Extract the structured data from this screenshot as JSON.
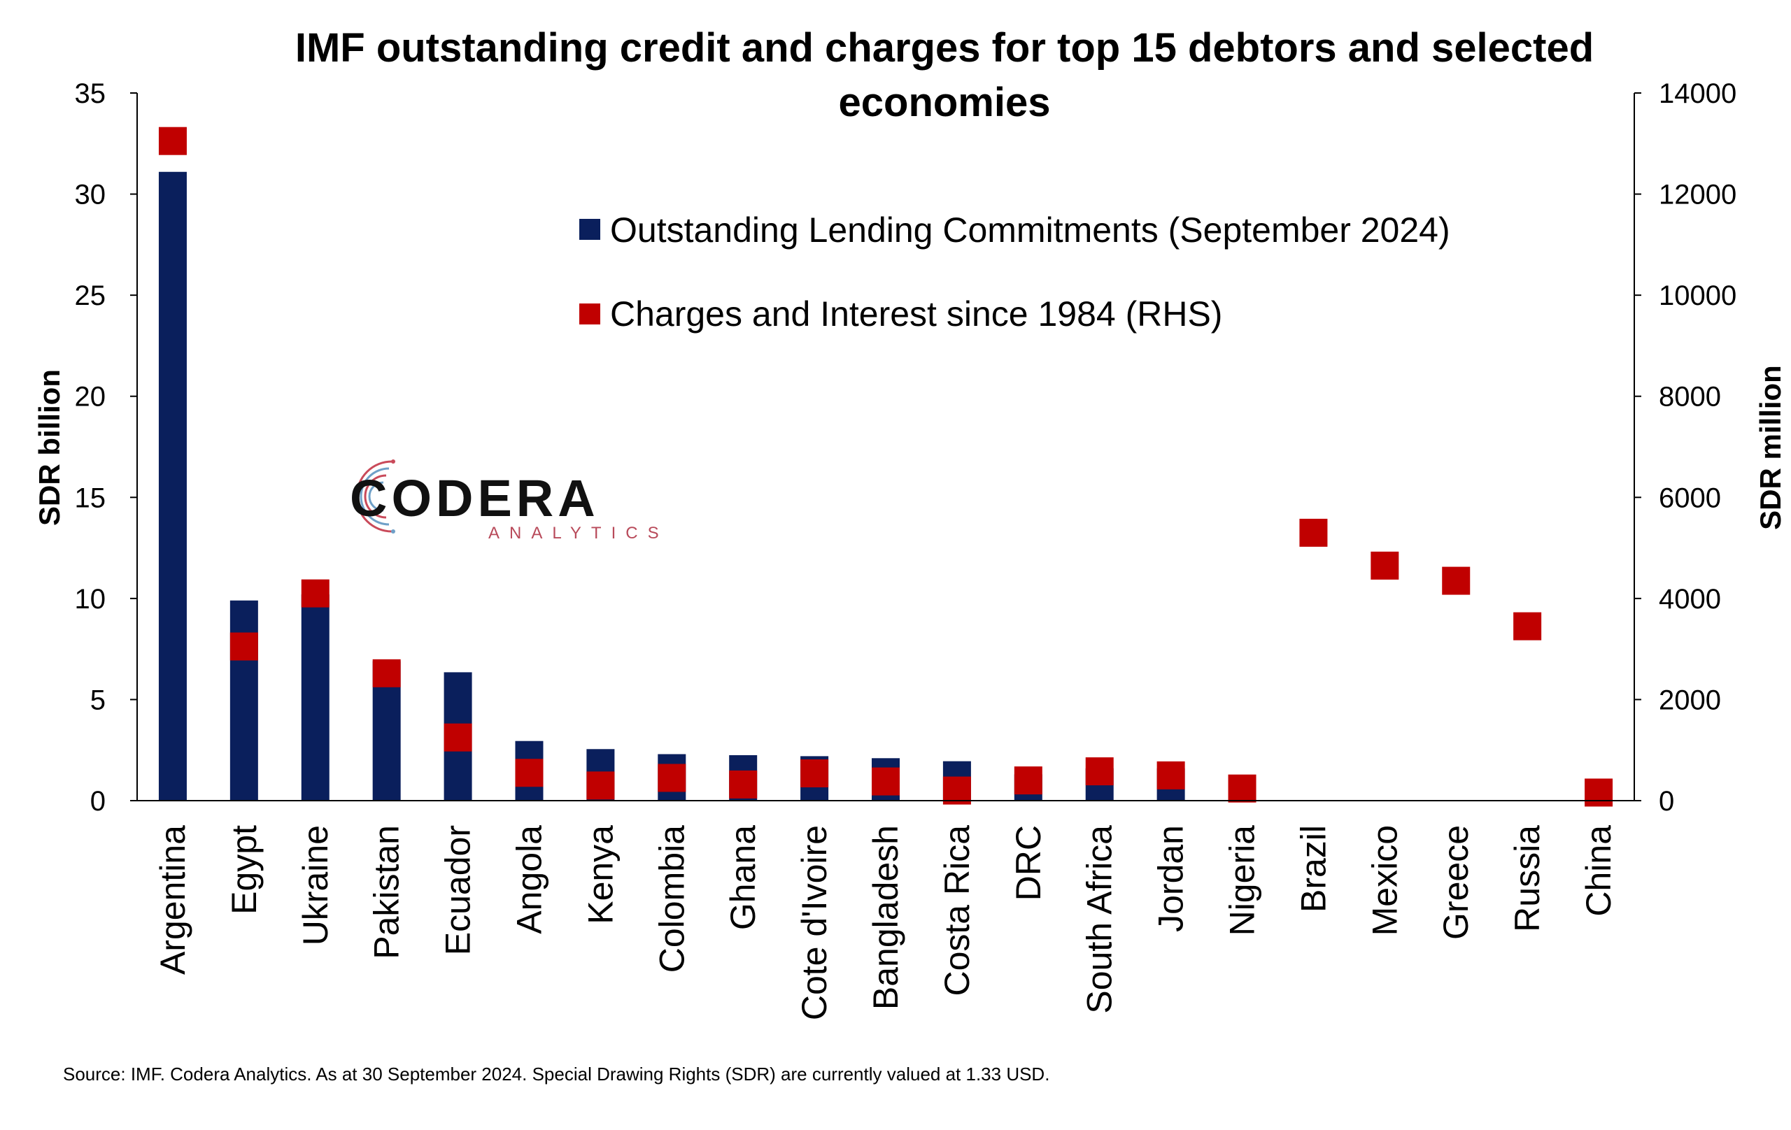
{
  "chart_data": {
    "type": "bar",
    "title": "IMF outstanding credit and charges for top 15 debtors and selected economies",
    "ylabel": "SDR billion",
    "y2label": "SDR million",
    "ylim": [
      0,
      35
    ],
    "y2lim": [
      0,
      14000
    ],
    "y_ticks": [
      0,
      5,
      10,
      15,
      20,
      25,
      30,
      35
    ],
    "y2_ticks": [
      0,
      2000,
      4000,
      6000,
      8000,
      10000,
      12000,
      14000
    ],
    "grid": false,
    "legend_position": "top-center",
    "categories": [
      "Argentina",
      "Egypt",
      "Ukraine",
      "Pakistan",
      "Ecuador",
      "Angola",
      "Kenya",
      "Colombia",
      "Ghana",
      "Cote d'Ivoire",
      "Bangladesh",
      "Costa Rica",
      "DRC",
      "South Africa",
      "Jordan",
      "Nigeria",
      "Brazil",
      "Mexico",
      "Greece",
      "Russia",
      "China"
    ],
    "series": [
      {
        "name": "Outstanding Lending Commitments (September 2024)",
        "type": "bar",
        "axis": "left",
        "color": "#0a1f5c",
        "values": [
          31.1,
          9.9,
          10.2,
          6.9,
          6.35,
          2.95,
          2.55,
          2.3,
          2.25,
          2.2,
          2.1,
          1.95,
          1.3,
          1.6,
          1.6,
          0,
          0,
          0,
          0,
          0,
          0
        ]
      },
      {
        "name": "Charges and Interest since 1984 (RHS)",
        "type": "marker",
        "axis": "right",
        "color": "#c00000",
        "values": [
          13050,
          3050,
          4100,
          2520,
          1250,
          550,
          300,
          450,
          320,
          540,
          380,
          200,
          400,
          580,
          500,
          240,
          5300,
          4650,
          4350,
          3450,
          160
        ]
      }
    ]
  },
  "logo": {
    "name": "CODERA",
    "sub": "ANALYTICS"
  },
  "source": "Source: IMF. Codera Analytics. As at 30 September 2024. Special Drawing Rights (SDR) are currently valued at 1.33 USD."
}
